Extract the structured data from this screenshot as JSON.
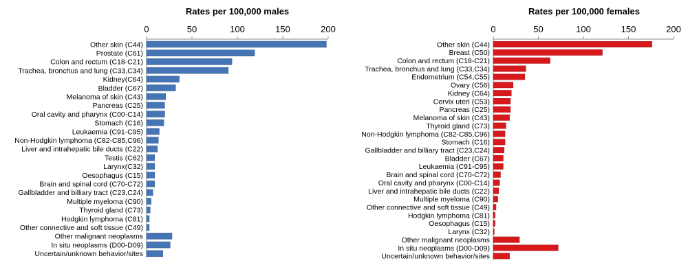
{
  "chart_data": [
    {
      "type": "bar",
      "orientation": "horizontal",
      "title": "Rates per 100,000 males",
      "xlim": [
        0,
        200
      ],
      "xticks": [
        "0",
        "50",
        "100",
        "150",
        "200"
      ],
      "axis_position": "top",
      "grid": false,
      "color": "#4575b4",
      "categories": [
        "Other skin (C44)",
        "Prostate (C61)",
        "Colon and rectum (C18-C21)",
        "Trachea, bronchus and lung (C33,C34)",
        "Kidney(C64)",
        "Bladder (C67)",
        "Melanoma of skin (C43)",
        "Pancreas (C25)",
        "Oral cavity and pharynx (C00-C14)",
        "Stomach (C16)",
        "Leukaemia (C91-C95)",
        "Non-Hodgkin lymphoma (C82-C85,C96)",
        "Liver and intrahepatic bile ducts (C22)",
        "Testis (C62)",
        "Larynx(C32)",
        "Oesophagus (C15)",
        "Brain and spinal cord (C70-C72)",
        "Gallbladder and billiary tract (C23,C24)",
        "Multiple myeloma (C90)",
        "Thyroid gland (C73)",
        "Hodgkin lymphoma (C81)",
        "Other connective and soft tissue (C49)",
        "Other malignant neoplasms",
        "In situ neoplasms (D00-D09)",
        "Uncertain/unknown behavior/sites"
      ],
      "values": [
        198,
        119,
        94,
        90,
        36,
        32,
        21,
        20,
        20,
        19,
        14,
        13,
        12,
        9,
        9,
        9,
        9,
        7,
        5,
        4,
        3,
        3,
        28,
        26,
        18
      ]
    },
    {
      "type": "bar",
      "orientation": "horizontal",
      "title": "Rates per 100,000 females",
      "xlim": [
        0,
        200
      ],
      "xticks": [
        "0",
        "50",
        "100",
        "150",
        "200"
      ],
      "axis_position": "top",
      "grid": false,
      "color": "#d7191c",
      "categories": [
        "Other skin (C44)",
        "Breast (C50)",
        "Colon and rectum (C18-C21)",
        "Trachea, bronchus and lung (C33,C34)",
        "Endometrium (C54,C55)",
        "Ovary (C56)",
        "Kidney (C64)",
        "Cervix uteri (C53)",
        "Pancreas (C25)",
        "Melanoma of skin (C43)",
        "Thyroid gland (C73)",
        "Non-Hodgkin lymphoma (C82-C85,C96)",
        "Stomach (C16)",
        "Gallbladder and billiary tract (C23,C24)",
        "Bladder (C67)",
        "Leukaemia (C91-C95)",
        "Brain and spinal cord (C70-C72)",
        "Oral cavity and pharynx (C00-C14)",
        "Liver and intrahepatic bile ducts (C22)",
        "Multiple myeloma (C90)",
        "Other connective and soft tissue (C49)",
        "Hodgkin lymphoma (C81)",
        "Oesophagus (C15)",
        "Larynx (C32)",
        "Other malignant neoplasms",
        "In situ neoplasms (D00-D09)",
        "Uncertain/unknown behavior/sites"
      ],
      "values": [
        176,
        121,
        63,
        36,
        35,
        22,
        20,
        19,
        19,
        18,
        14,
        13,
        13,
        12,
        11,
        11,
        8,
        7,
        6,
        5,
        3,
        2,
        2,
        1,
        29,
        72,
        18
      ]
    }
  ]
}
